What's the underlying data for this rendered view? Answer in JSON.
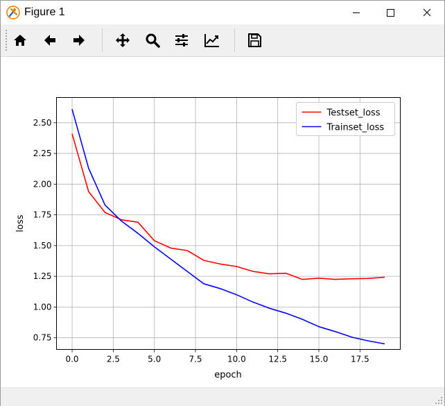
{
  "window": {
    "title": "Figure 1"
  },
  "toolbar": {
    "buttons": [
      {
        "name": "home",
        "icon": "home-icon"
      },
      {
        "name": "back",
        "icon": "arrow-left-icon"
      },
      {
        "name": "forward",
        "icon": "arrow-right-icon"
      },
      {
        "name": "pan",
        "icon": "move-icon"
      },
      {
        "name": "zoom",
        "icon": "magnifier-icon"
      },
      {
        "name": "subplots",
        "icon": "sliders-icon"
      },
      {
        "name": "edit-axis",
        "icon": "line-chart-icon"
      },
      {
        "name": "save",
        "icon": "floppy-disk-icon"
      }
    ]
  },
  "status": {
    "text": ""
  },
  "chart_data": {
    "type": "line",
    "xlabel": "epoch",
    "ylabel": "loss",
    "xlim": [
      -0.95,
      19.95
    ],
    "ylim": [
      0.655,
      2.705
    ],
    "xticks": [
      0.0,
      2.5,
      5.0,
      7.5,
      10.0,
      12.5,
      15.0,
      17.5
    ],
    "xtick_labels": [
      "0.0",
      "2.5",
      "5.0",
      "7.5",
      "10.0",
      "12.5",
      "15.0",
      "17.5"
    ],
    "yticks": [
      0.75,
      1.0,
      1.25,
      1.5,
      1.75,
      2.0,
      2.25,
      2.5
    ],
    "ytick_labels": [
      "0.75",
      "1.00",
      "1.25",
      "1.50",
      "1.75",
      "2.00",
      "2.25",
      "2.50"
    ],
    "grid": true,
    "legend_position": "top-right",
    "x": [
      0,
      1,
      2,
      3,
      4,
      5,
      6,
      7,
      8,
      9,
      10,
      11,
      12,
      13,
      14,
      15,
      16,
      17,
      18,
      19
    ],
    "series": [
      {
        "name": "Testset_loss",
        "color": "#ff0000",
        "values": [
          2.41,
          1.94,
          1.77,
          1.71,
          1.69,
          1.54,
          1.48,
          1.46,
          1.38,
          1.35,
          1.33,
          1.29,
          1.27,
          1.275,
          1.225,
          1.235,
          1.225,
          1.23,
          1.233,
          1.243
        ]
      },
      {
        "name": "Trainset_loss",
        "color": "#0000ff",
        "values": [
          2.61,
          2.13,
          1.83,
          1.7,
          1.6,
          1.49,
          1.39,
          1.29,
          1.19,
          1.15,
          1.1,
          1.04,
          0.99,
          0.95,
          0.9,
          0.84,
          0.8,
          0.755,
          0.725,
          0.7
        ]
      }
    ]
  }
}
